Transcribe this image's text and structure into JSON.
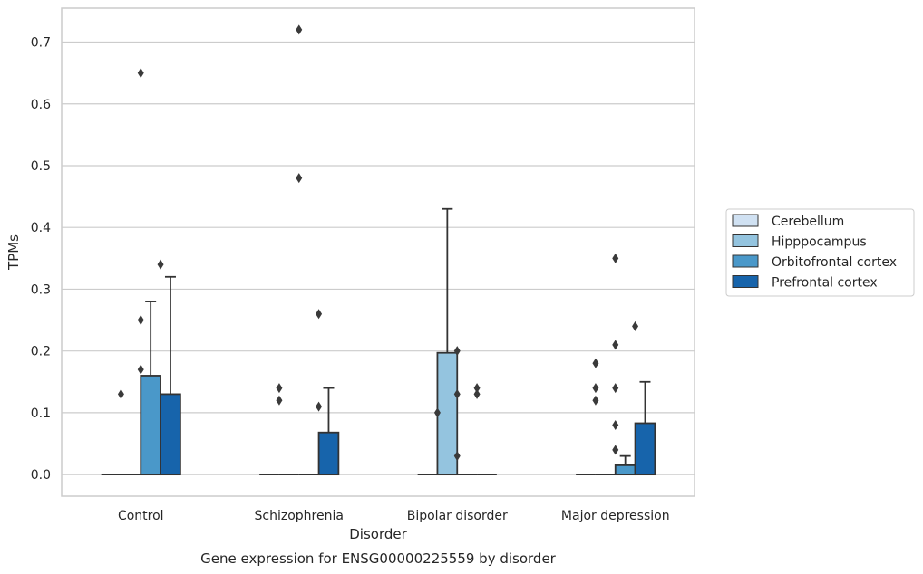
{
  "chart_data": {
    "type": "bar",
    "title": "",
    "xlabel": "Disorder",
    "ylabel": "TPMs",
    "caption": "Gene expression for ENSG00000225559 by disorder",
    "categories": [
      "Control",
      "Schizophrenia",
      "Bipolar disorder",
      "Major depression"
    ],
    "ylim": [
      -0.035,
      0.755
    ],
    "yticks": [
      0.0,
      0.1,
      0.2,
      0.3,
      0.4,
      0.5,
      0.6,
      0.7
    ],
    "ytick_labels": [
      "0.0",
      "0.1",
      "0.2",
      "0.3",
      "0.4",
      "0.5",
      "0.6",
      "0.7"
    ],
    "grid": true,
    "legend_position": "right",
    "series": [
      {
        "name": "Cerebellum",
        "color": "#d0e1f2",
        "values": [
          0,
          0,
          0,
          0
        ],
        "whisker_high": [
          null,
          null,
          null,
          null
        ],
        "outliers": [
          [],
          [],
          [],
          []
        ]
      },
      {
        "name": "Hipppocampus",
        "color": "#94c4df",
        "values": [
          0,
          0,
          0.197,
          0
        ],
        "whisker_high": [
          null,
          null,
          0.43,
          null
        ],
        "outliers": [
          [
            0.13
          ],
          [
            0.14,
            0.12
          ],
          [
            0.1
          ],
          [
            0.18,
            0.14,
            0.12
          ]
        ]
      },
      {
        "name": "Orbitofrontal cortex",
        "color": "#4a98c9",
        "values": [
          0.16,
          0,
          0,
          0.015
        ],
        "whisker_high": [
          0.28,
          null,
          null,
          0.03
        ],
        "outliers": [
          [
            0.65,
            0.25,
            0.17
          ],
          [
            0.72,
            0.48
          ],
          [
            0.2,
            0.13,
            0.03
          ],
          [
            0.35,
            0.21,
            0.14,
            0.08,
            0.04
          ]
        ]
      },
      {
        "name": "Prefrontal cortex",
        "color": "#1764ab",
        "values": [
          0.13,
          0.068,
          0,
          0.083
        ],
        "whisker_high": [
          0.32,
          0.14,
          null,
          0.15
        ],
        "outliers": [
          [
            0.34
          ],
          [
            0.26,
            0.11
          ],
          [
            0.14,
            0.13
          ],
          [
            0.24
          ]
        ]
      }
    ]
  }
}
